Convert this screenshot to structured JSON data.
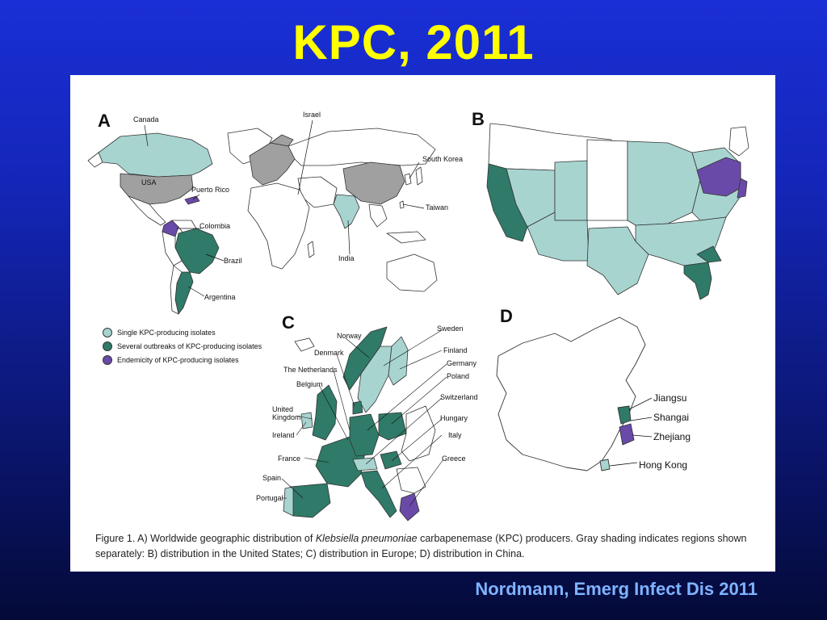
{
  "slide": {
    "title": "KPC, 2011",
    "source": "Nordmann, Emerg Infect Dis 2011"
  },
  "colors": {
    "single": "#a8d4d0",
    "outbreaks": "#2f7a68",
    "endemic": "#6a4aa8",
    "gray": "#a0a0a0",
    "title": "#ffff00",
    "source": "#7fb3ff"
  },
  "panels": {
    "a": {
      "letter": "A",
      "labels": [
        "Canada",
        "USA",
        "Puerto Rico",
        "Colombia",
        "Brazil",
        "Argentina",
        "Israel",
        "South Korea",
        "Taiwan",
        "India"
      ]
    },
    "b": {
      "letter": "B"
    },
    "c": {
      "letter": "C",
      "labels": [
        "Norway",
        "Sweden",
        "Denmark",
        "Finland",
        "The Netherlands",
        "Germany",
        "Belgium",
        "Poland",
        "Switzerland",
        "United Kingdom",
        "Hungary",
        "Ireland",
        "Italy",
        "France",
        "Greece",
        "Spain",
        "Portugal"
      ]
    },
    "d": {
      "letter": "D",
      "labels": [
        "Jiangsu",
        "Shangai",
        "Zhejiang",
        "Hong Kong"
      ]
    }
  },
  "legend": [
    {
      "label": "Single KPC-producing isolates",
      "color": "#a8d4d0"
    },
    {
      "label": "Several outbreaks of KPC-producing isolates",
      "color": "#2f7a68"
    },
    {
      "label": "Endemicity of KPC-producing isolates",
      "color": "#6a4aa8"
    }
  ],
  "caption": {
    "prefix": "Figure 1. A) Worldwide geographic distribution of ",
    "italic": "Klebsiella pneumoniae",
    "suffix": " carbapenemase (KPC) producers. Gray shading indicates regions shown separately: B) distribution in the United States; C) distribution in Europe; D) distribution in China."
  }
}
